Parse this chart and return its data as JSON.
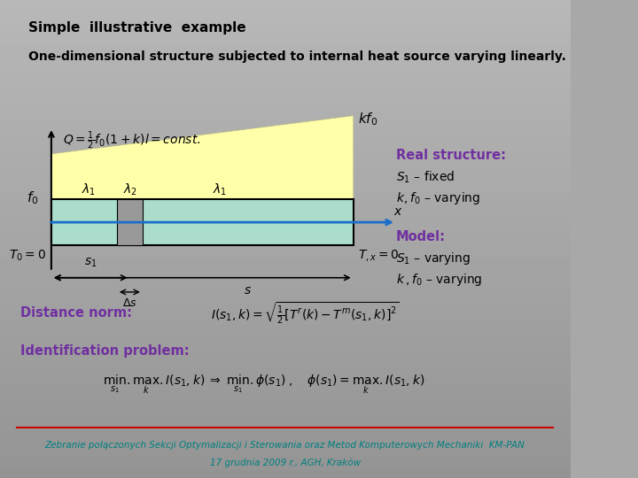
{
  "title": "Simple  illustrative  example",
  "subtitle": "One-dimensional structure subjected to internal heat source varying linearly.",
  "real_structure_title": "Real structure:",
  "model_title": "Model:",
  "distance_norm_label": "Distance norm:",
  "id_problem_label": "Identification problem:",
  "footer1": "Zebranie połączonych Sekcji Optymalizacji i Sterowania oraz Metod Komputerowych Mechaniki  KM-PAN",
  "footer2": "17 grudnia 2009 r., AGH, Kraków",
  "bg_color": "#a8a8a8",
  "trapezoid_color": "#ffffaa",
  "bar_color": "#aaddcc",
  "bar_edge": "#000000",
  "arrow_color": "#1a6fcc",
  "text_color_purple": "#7030a0",
  "text_color_teal": "#008080",
  "footer_line_color": "#cc0000"
}
